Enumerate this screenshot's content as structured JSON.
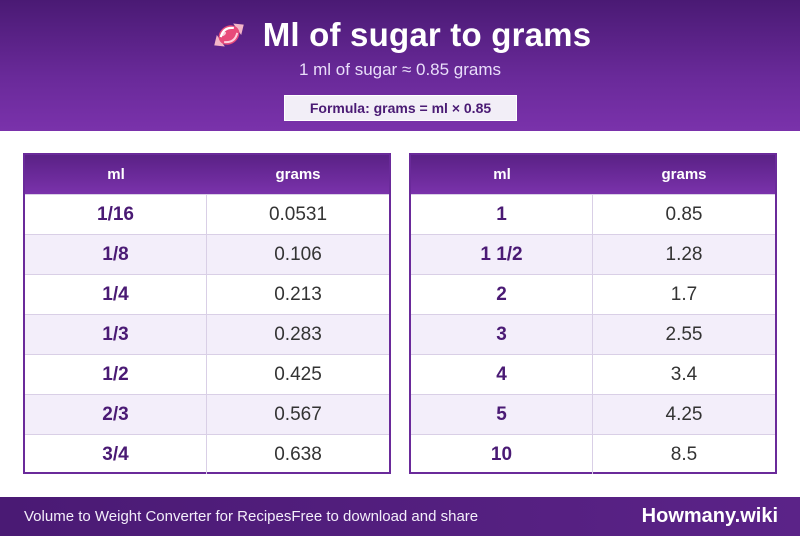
{
  "header": {
    "icon": "candy-icon",
    "title": "Ml of sugar to grams",
    "subtitle": "1 ml of sugar ≈ 0.85 grams",
    "formula": "Formula: grams = ml × 0.85"
  },
  "tables": [
    {
      "headers": [
        "ml",
        "grams"
      ],
      "rows": [
        {
          "ml": "1/16",
          "grams": "0.0531"
        },
        {
          "ml": "1/8",
          "grams": "0.106"
        },
        {
          "ml": "1/4",
          "grams": "0.213"
        },
        {
          "ml": "1/3",
          "grams": "0.283"
        },
        {
          "ml": "1/2",
          "grams": "0.425"
        },
        {
          "ml": "2/3",
          "grams": "0.567"
        },
        {
          "ml": "3/4",
          "grams": "0.638"
        }
      ]
    },
    {
      "headers": [
        "ml",
        "grams"
      ],
      "rows": [
        {
          "ml": "1",
          "grams": "0.85"
        },
        {
          "ml": "1 1/2",
          "grams": "1.28"
        },
        {
          "ml": "2",
          "grams": "1.7"
        },
        {
          "ml": "3",
          "grams": "2.55"
        },
        {
          "ml": "4",
          "grams": "3.4"
        },
        {
          "ml": "5",
          "grams": "4.25"
        },
        {
          "ml": "10",
          "grams": "8.5"
        }
      ]
    }
  ],
  "footer": {
    "left_text": "Volume to Weight Converter for Recipes",
    "middle_text": "Free to download and share",
    "brand": "Howmany.wiki"
  },
  "colors": {
    "primary": "#6a2a9a",
    "dark": "#4a1a74",
    "row_alt": "#f3eefa"
  }
}
